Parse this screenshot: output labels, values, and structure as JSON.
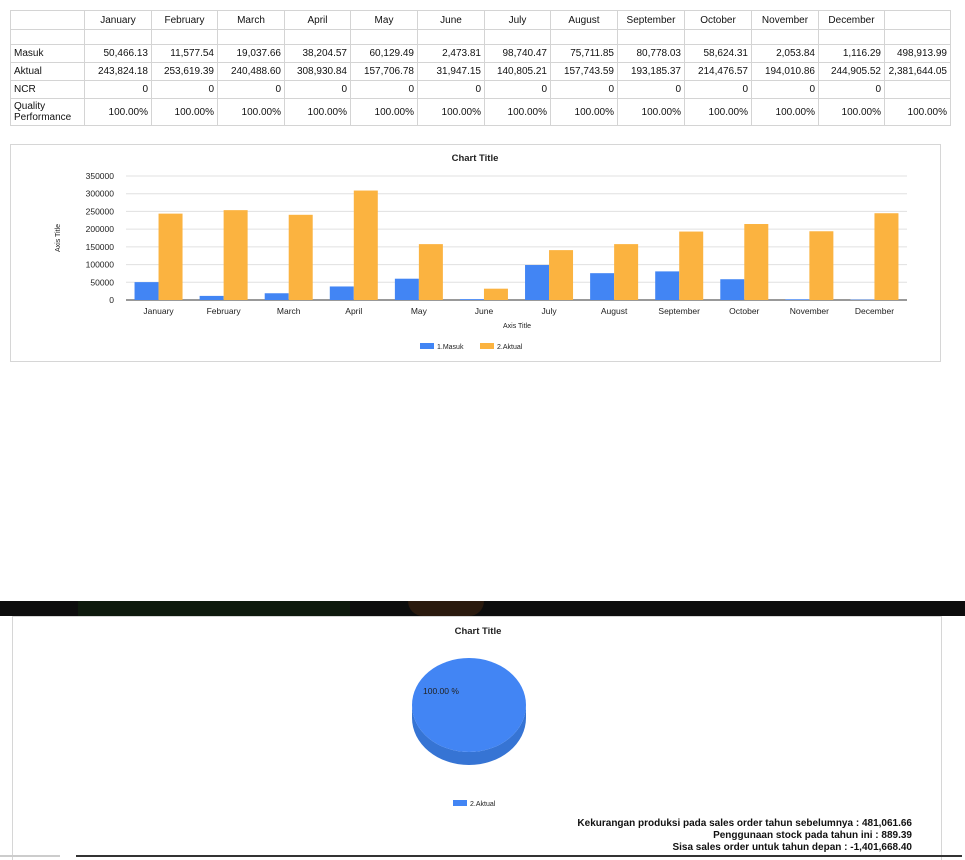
{
  "table": {
    "months": [
      "January",
      "February",
      "March",
      "April",
      "May",
      "June",
      "July",
      "August",
      "September",
      "October",
      "November",
      "December"
    ],
    "rows": [
      {
        "label": "Masuk",
        "values": [
          "50,466.13",
          "11,577.54",
          "19,037.66",
          "38,204.57",
          "60,129.49",
          "2,473.81",
          "98,740.47",
          "75,711.85",
          "80,778.03",
          "58,624.31",
          "2,053.84",
          "1,116.29"
        ],
        "total": "498,913.99"
      },
      {
        "label": "Aktual",
        "values": [
          "243,824.18",
          "253,619.39",
          "240,488.60",
          "308,930.84",
          "157,706.78",
          "31,947.15",
          "140,805.21",
          "157,743.59",
          "193,185.37",
          "214,476.57",
          "194,010.86",
          "244,905.52"
        ],
        "total": "2,381,644.05"
      },
      {
        "label": "NCR",
        "values": [
          "0",
          "0",
          "0",
          "0",
          "0",
          "0",
          "0",
          "0",
          "0",
          "0",
          "0",
          "0"
        ],
        "total": ""
      },
      {
        "label": "Quality Performance",
        "values": [
          "100.00%",
          "100.00%",
          "100.00%",
          "100.00%",
          "100.00%",
          "100.00%",
          "100.00%",
          "100.00%",
          "100.00%",
          "100.00%",
          "100.00%",
          "100.00%"
        ],
        "total": "100.00%"
      }
    ]
  },
  "chart_data": [
    {
      "type": "bar",
      "title": "Chart Title",
      "xlabel": "Axis Title",
      "ylabel": "Axis Title",
      "ylim": [
        0,
        350000
      ],
      "yticks": [
        "350000",
        "300000",
        "250000",
        "200000",
        "150000",
        "100000",
        "50000",
        "0"
      ],
      "categories": [
        "January",
        "February",
        "March",
        "April",
        "May",
        "June",
        "July",
        "August",
        "September",
        "October",
        "November",
        "December"
      ],
      "series": [
        {
          "name": "1.Masuk",
          "color": "#4285f4",
          "values": [
            50466.13,
            11577.54,
            19037.66,
            38204.57,
            60129.49,
            2473.81,
            98740.47,
            75711.85,
            80778.03,
            58624.31,
            2053.84,
            1116.29
          ]
        },
        {
          "name": "2.Aktual",
          "color": "#fbb340",
          "values": [
            243824.18,
            253619.39,
            240488.6,
            308930.84,
            157706.78,
            31947.15,
            140805.21,
            157743.59,
            193185.37,
            214476.57,
            194010.86,
            244905.52
          ]
        }
      ],
      "legend_position": "bottom",
      "grid": true
    },
    {
      "type": "pie",
      "title": "Chart Title",
      "slices": [
        {
          "name": "2.Aktual",
          "value": 100.0,
          "label": "100.00 %",
          "color": "#4285f4"
        }
      ],
      "legend_position": "bottom"
    }
  ],
  "notes": [
    "Kekurangan produksi pada sales order tahun sebelumnya : 481,061.66",
    "Penggunaan stock pada tahun ini : 889.39",
    "Sisa sales order untuk tahun depan : -1,401,668.40"
  ]
}
